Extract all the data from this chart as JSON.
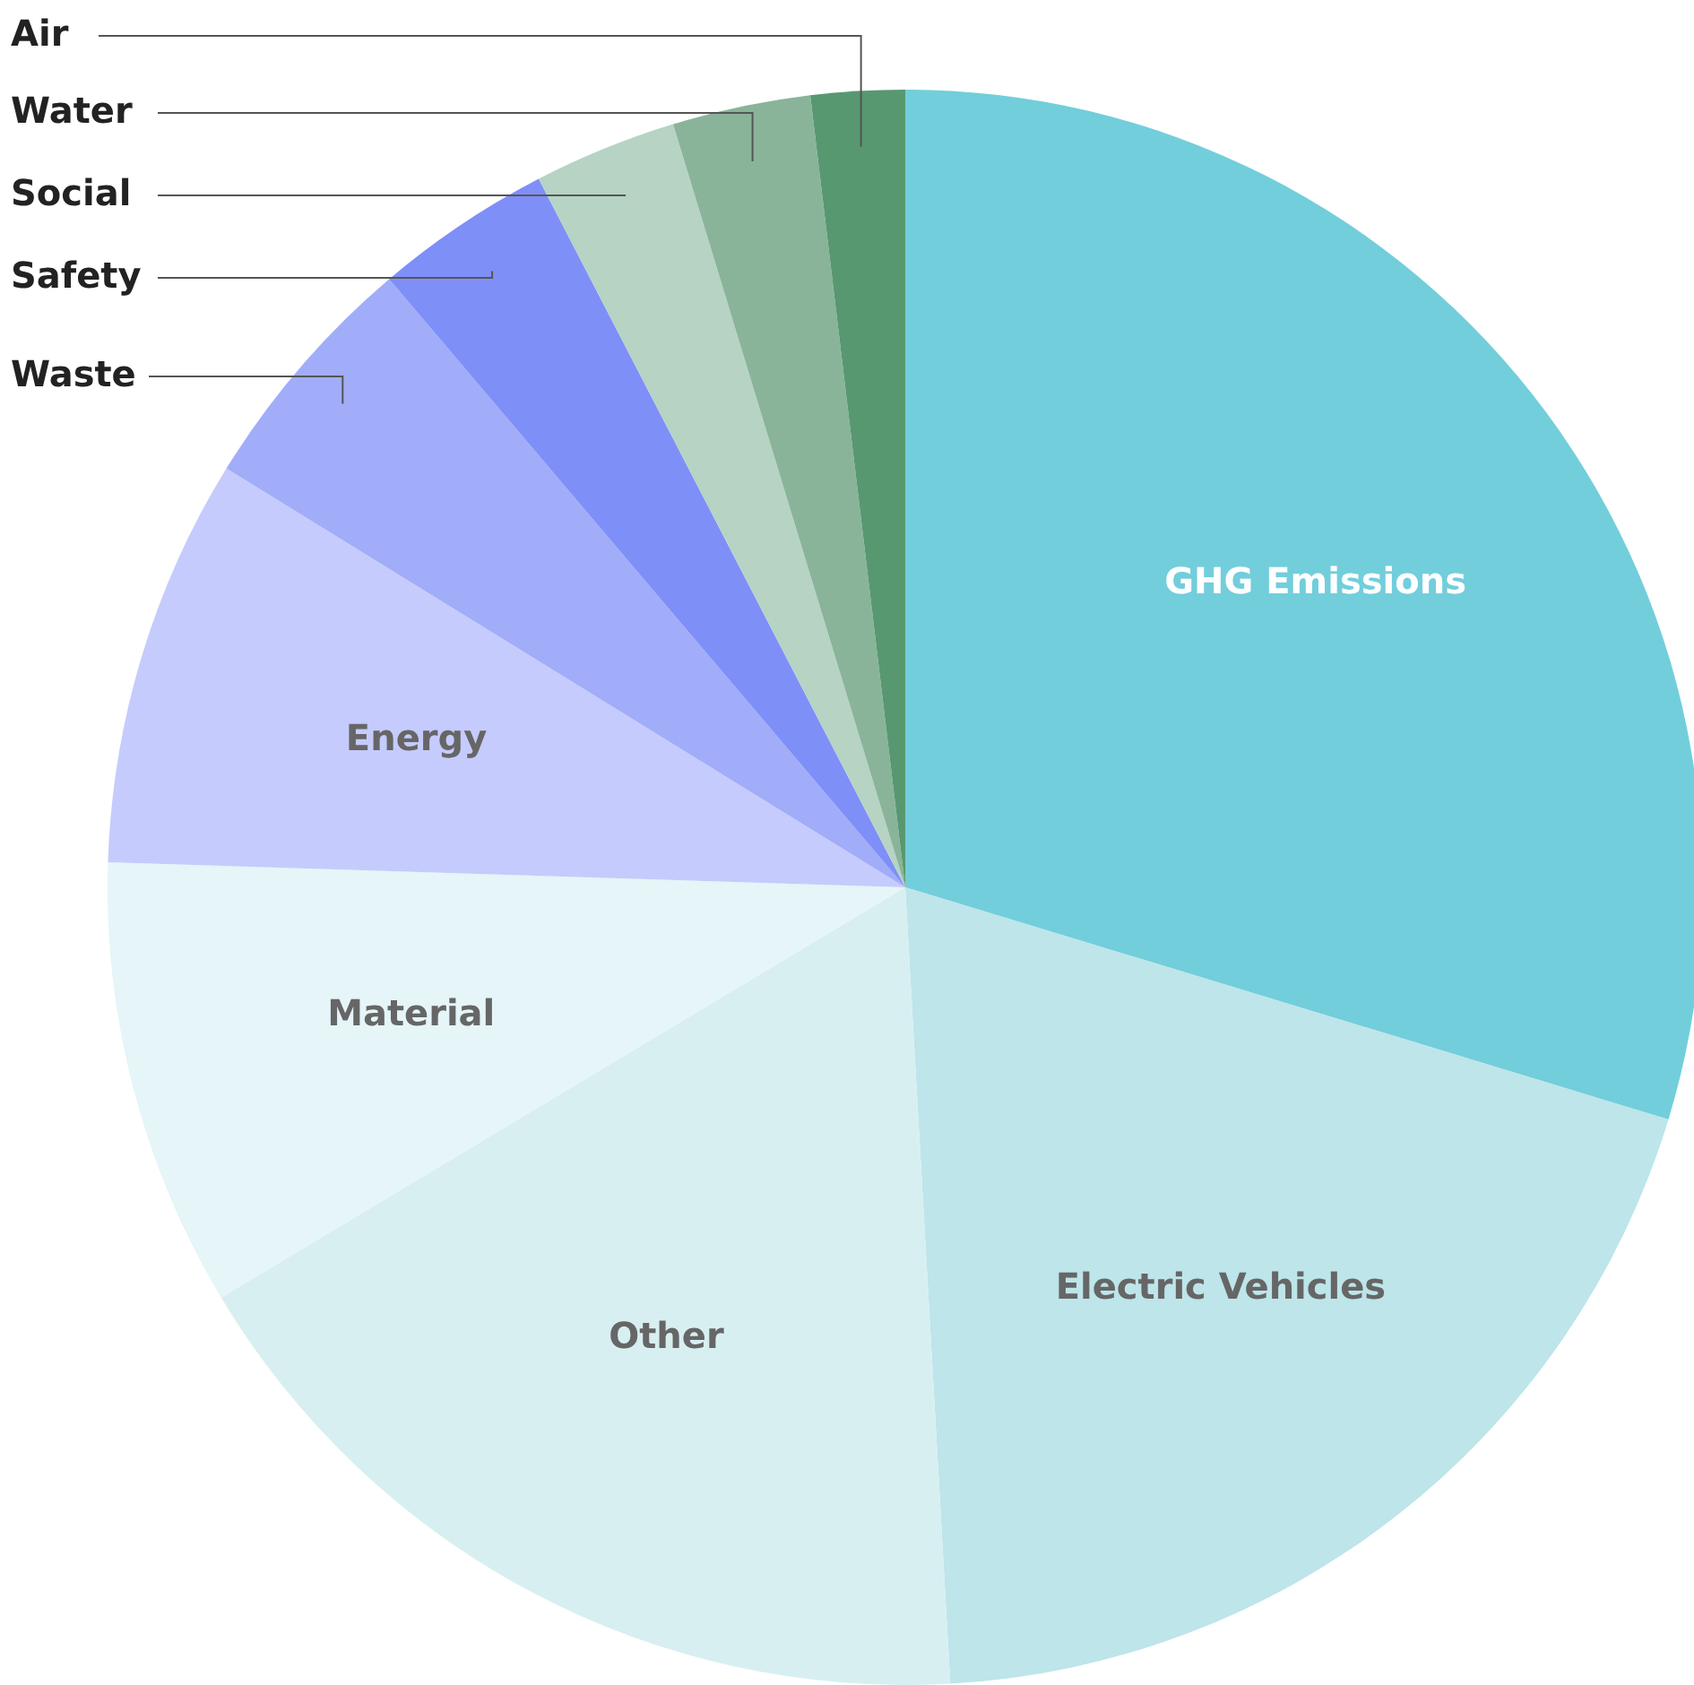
{
  "chart_data": {
    "type": "pie",
    "categories": [
      "GHG Emissions",
      "Electric Vehicles",
      "Other",
      "Material",
      "Energy",
      "Waste",
      "Safety",
      "Social",
      "Water",
      "Air"
    ],
    "values": [
      29.7,
      19.4,
      17.3,
      9.1,
      8.3,
      5.0,
      3.6,
      2.9,
      2.8,
      1.9
    ],
    "colors": [
      "#72cedb",
      "#bde5ea",
      "#d8eff2",
      "#e5f5f8",
      "#c5cbfc",
      "#a1adf9",
      "#7f8ff8",
      "#b6d3c4",
      "#89b49a",
      "#579871"
    ],
    "legend": false
  }
}
